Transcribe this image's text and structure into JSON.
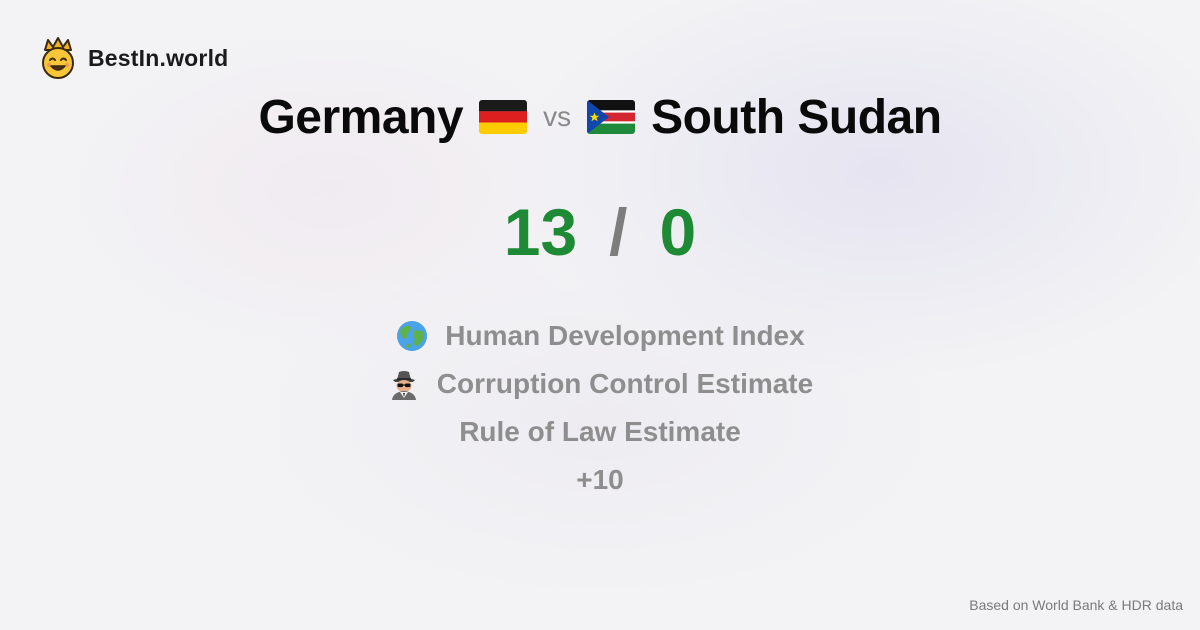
{
  "brand": {
    "name": "BestIn.world",
    "logo_icon": "crowned-smiley-icon"
  },
  "comparison": {
    "left_country": "Germany",
    "left_flag": "germany-flag-icon",
    "vs_label": "vs",
    "right_country": "South Sudan",
    "right_flag": "south-sudan-flag-icon"
  },
  "score": {
    "left": "13",
    "separator": "/",
    "right": "0",
    "color": "#1e8a35"
  },
  "metrics": [
    {
      "icon": "globe-icon",
      "label": "Human Development Index"
    },
    {
      "icon": "detective-icon",
      "label": "Corruption Control Estimate"
    },
    {
      "icon": "",
      "label": "Rule of Law Estimate"
    },
    {
      "icon": "",
      "label": "+10"
    }
  ],
  "footer": {
    "note": "Based on World Bank & HDR data"
  }
}
